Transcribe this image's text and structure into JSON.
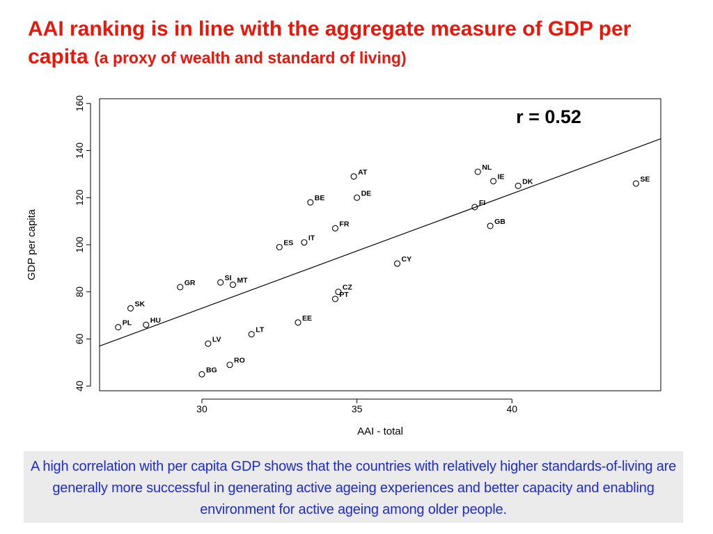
{
  "title": {
    "main": "AAI ranking is in line with the aggregate measure of GDP per capita",
    "sub": "(a proxy of wealth and standard of living)"
  },
  "caption": "A high correlation with per capita GDP shows that the countries with relatively higher standards-of-living are generally more successful in generating active ageing experiences and better capacity and enabling environment for active ageing among older people.",
  "chart_data": {
    "type": "scatter",
    "xlabel": "AAI - total",
    "ylabel": "GDP per capita",
    "xlim": [
      26.7,
      44.8
    ],
    "ylim": [
      38,
      162
    ],
    "xticks": [
      30,
      35,
      40
    ],
    "yticks": [
      40,
      60,
      80,
      100,
      120,
      140,
      160
    ],
    "annotation": "r = 0.52",
    "grid": false,
    "trendline": {
      "x": [
        26.7,
        44.8
      ],
      "y": [
        57,
        145
      ]
    },
    "points": [
      {
        "label": "SE",
        "x": 44.0,
        "y": 126
      },
      {
        "label": "NL",
        "x": 38.9,
        "y": 131
      },
      {
        "label": "IE",
        "x": 39.4,
        "y": 127
      },
      {
        "label": "DK",
        "x": 40.2,
        "y": 125
      },
      {
        "label": "FI",
        "x": 38.8,
        "y": 116
      },
      {
        "label": "GB",
        "x": 39.3,
        "y": 108
      },
      {
        "label": "AT",
        "x": 34.9,
        "y": 129
      },
      {
        "label": "DE",
        "x": 35.0,
        "y": 120
      },
      {
        "label": "BE",
        "x": 33.5,
        "y": 118
      },
      {
        "label": "FR",
        "x": 34.3,
        "y": 107
      },
      {
        "label": "IT",
        "x": 33.3,
        "y": 101
      },
      {
        "label": "ES",
        "x": 32.5,
        "y": 99
      },
      {
        "label": "CY",
        "x": 36.3,
        "y": 92
      },
      {
        "label": "CZ",
        "x": 34.4,
        "y": 80
      },
      {
        "label": "PT",
        "x": 34.3,
        "y": 77
      },
      {
        "label": "EE",
        "x": 33.1,
        "y": 67
      },
      {
        "label": "SI",
        "x": 30.6,
        "y": 84
      },
      {
        "label": "MT",
        "x": 31.0,
        "y": 83
      },
      {
        "label": "GR",
        "x": 29.3,
        "y": 82
      },
      {
        "label": "SK",
        "x": 27.7,
        "y": 73
      },
      {
        "label": "HU",
        "x": 28.2,
        "y": 66
      },
      {
        "label": "PL",
        "x": 27.3,
        "y": 65
      },
      {
        "label": "LT",
        "x": 31.6,
        "y": 62
      },
      {
        "label": "LV",
        "x": 30.2,
        "y": 58
      },
      {
        "label": "RO",
        "x": 30.9,
        "y": 49
      },
      {
        "label": "BG",
        "x": 30.0,
        "y": 45
      }
    ],
    "colors": {
      "points": "#000000",
      "line": "#000000"
    }
  },
  "colors": {
    "title": "#e8170c",
    "caption_text": "#1f2cc8",
    "caption_bg": "#ebebeb"
  }
}
